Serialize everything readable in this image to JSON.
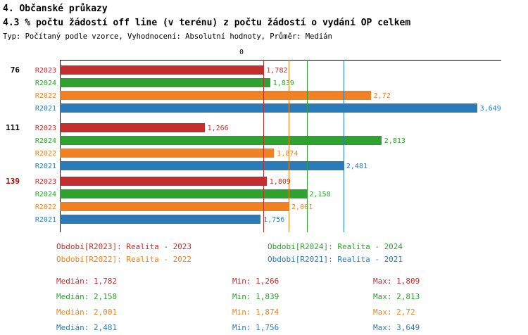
{
  "header": {
    "title": "4. Občanské průkazy",
    "subtitle": "4.3 % počtu žádostí off line (v terénu) z počtu žádostí o vydání OP celkem",
    "meta": "Typ: Počítaný podle vzorce, Vyhodnocení: Absolutní hodnoty, Průměr: Medián"
  },
  "chart_data": {
    "type": "bar",
    "orientation": "horizontal",
    "title": "4.3 % počtu žádostí off line (v terénu) z počtu žádostí o vydání OP celkem",
    "xlabel": "",
    "ylabel": "",
    "x_axis": {
      "min": 0,
      "zero_tick_label": "0",
      "max_visible": 3.86
    },
    "series_order": [
      "R2023",
      "R2024",
      "R2022",
      "R2021"
    ],
    "series": [
      {
        "name": "R2023",
        "color": "#c22f2e",
        "legend": "Období[R2023]: Realita - 2023",
        "median": 1.782,
        "min": 1.266,
        "max": 1.809
      },
      {
        "name": "R2024",
        "color": "#2ea12e",
        "legend": "Období[R2024]: Realita - 2024",
        "median": 2.158,
        "min": 1.839,
        "max": 2.813
      },
      {
        "name": "R2022",
        "color": "#f08223",
        "legend": "Období[R2022]: Realita - 2022",
        "median": 2.001,
        "min": 1.874,
        "max": 2.72
      },
      {
        "name": "R2021",
        "color": "#2b7bb9",
        "legend": "Období[R2021]: Realita - 2021",
        "median": 2.481,
        "min": 1.756,
        "max": 3.649
      }
    ],
    "groups": [
      {
        "label": "76",
        "label_color": "#000000",
        "bars": [
          {
            "series": "R2023",
            "value": 1.782,
            "display": "1,782"
          },
          {
            "series": "R2024",
            "value": 1.839,
            "display": "1,839"
          },
          {
            "series": "R2022",
            "value": 2.72,
            "display": "2,72"
          },
          {
            "series": "R2021",
            "value": 3.649,
            "display": "3,649"
          }
        ]
      },
      {
        "label": "111",
        "label_color": "#000000",
        "bars": [
          {
            "series": "R2023",
            "value": 1.266,
            "display": "1,266"
          },
          {
            "series": "R2024",
            "value": 2.813,
            "display": "2,813"
          },
          {
            "series": "R2022",
            "value": 1.874,
            "display": "1,874"
          },
          {
            "series": "R2021",
            "value": 2.481,
            "display": "2,481"
          }
        ]
      },
      {
        "label": "139",
        "label_color": "#c00000",
        "bars": [
          {
            "series": "R2023",
            "value": 1.809,
            "display": "1,809"
          },
          {
            "series": "R2024",
            "value": 2.158,
            "display": "2,158"
          },
          {
            "series": "R2022",
            "value": 2.001,
            "display": "2,001"
          },
          {
            "series": "R2021",
            "value": 1.756,
            "display": "1,756"
          }
        ]
      }
    ],
    "median_lines": [
      {
        "series": "R2023",
        "value": 1.782
      },
      {
        "series": "R2022",
        "value": 2.001
      },
      {
        "series": "R2024",
        "value": 2.158
      },
      {
        "series": "R2021",
        "value": 2.481
      }
    ]
  },
  "legend": {
    "columns": [
      [
        {
          "text": "Období[R2023]: Realita - 2023",
          "color": "#c22f2e"
        },
        {
          "text": "Období[R2022]: Realita - 2022",
          "color": "#f08223"
        }
      ],
      [
        {
          "text": "Období[R2024]: Realita - 2024",
          "color": "#2ea12e"
        },
        {
          "text": "Období[R2021]: Realita - 2021",
          "color": "#2b7bb9"
        }
      ]
    ]
  },
  "stats": {
    "labels": {
      "median": "Medián",
      "min": "Min",
      "max": "Max"
    },
    "rows": [
      {
        "color": "#c22f2e",
        "median": "1,782",
        "min": "1,266",
        "max": "1,809"
      },
      {
        "color": "#2ea12e",
        "median": "2,158",
        "min": "1,839",
        "max": "2,813"
      },
      {
        "color": "#f08223",
        "median": "2,001",
        "min": "1,874",
        "max": "2,72"
      },
      {
        "color": "#2b7bb9",
        "median": "2,481",
        "min": "1,756",
        "max": "3,649"
      }
    ]
  }
}
